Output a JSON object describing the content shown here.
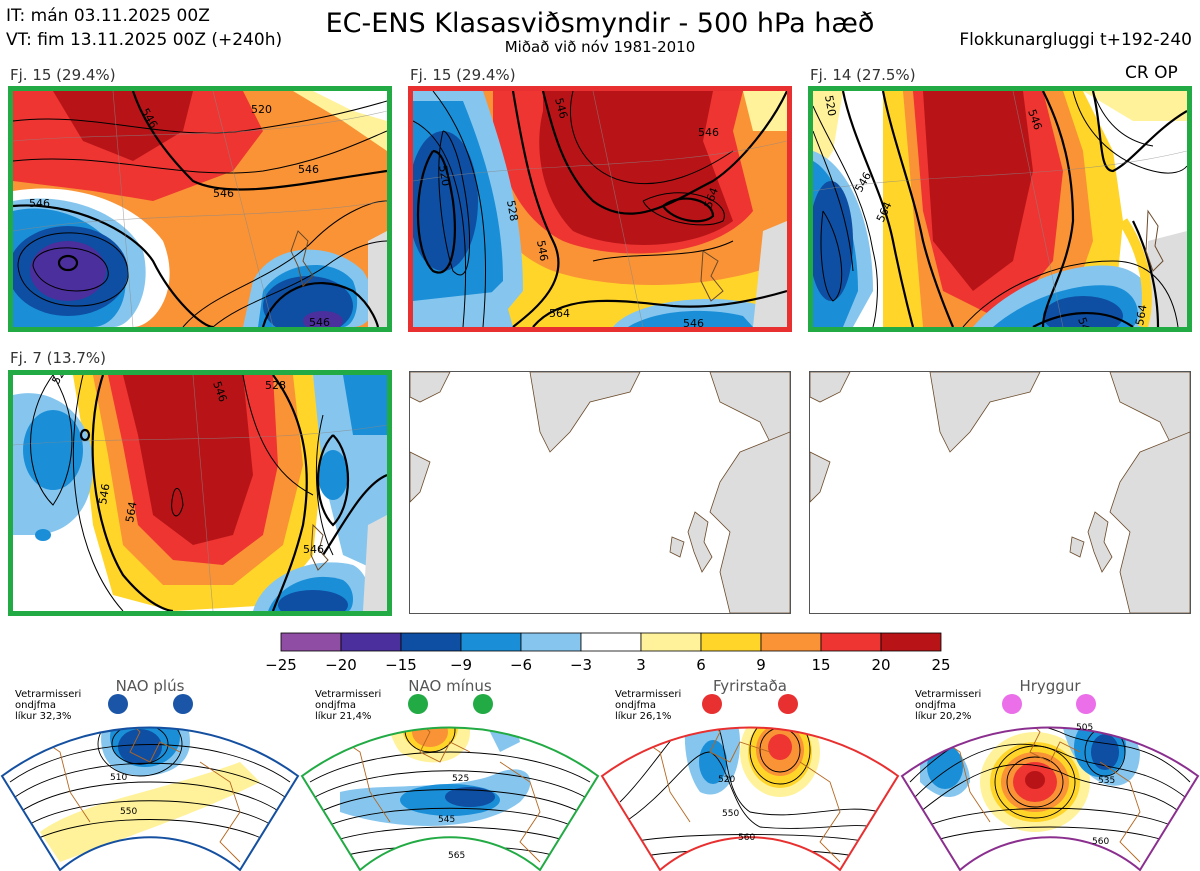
{
  "header": {
    "it": "IT: mán 03.11.2025 00Z",
    "vt": "VT: fim 13.11.2025 00Z  (+240h)",
    "title": "EC-ENS Klasasviðsmyndir - 500 hPa hæð",
    "subtitle": "Miðað við nóv 1981-2010",
    "window": "Flokkunargluggi t+192-240"
  },
  "panels": [
    {
      "label": "Fj. 15 (29.4%)",
      "frame": "#22aa44",
      "extra": "",
      "contours": [
        "520",
        "546",
        "546",
        "546",
        "546",
        "546"
      ]
    },
    {
      "label": "Fj. 15 (29.4%)",
      "frame": "#e83030",
      "extra": "",
      "contours": [
        "546",
        "546",
        "520",
        "528",
        "546",
        "564",
        "564",
        "546"
      ]
    },
    {
      "label": "Fj. 14 (27.5%)",
      "frame": "#22aa44",
      "extra": "CR OP",
      "contours": [
        "520",
        "546",
        "546",
        "564",
        "546",
        "564"
      ]
    },
    {
      "label": "Fj. 7 (13.7%)",
      "frame": "#22aa44",
      "extra": "",
      "contours": [
        "520",
        "546",
        "528",
        "546",
        "564",
        "546"
      ]
    },
    {
      "label": "",
      "frame": "",
      "extra": "",
      "contours": []
    },
    {
      "label": "",
      "frame": "",
      "extra": "",
      "contours": []
    }
  ],
  "colorbar": {
    "colors": [
      "#8f4ea3",
      "#4b2f9c",
      "#0e4fa3",
      "#1a8fd8",
      "#86c6ee",
      "#ffffff",
      "#fff29a",
      "#ffd52a",
      "#f99336",
      "#ee3532",
      "#b81418"
    ],
    "ticks": [
      "−25",
      "−20",
      "−15",
      "−9",
      "−6",
      "−3",
      "3",
      "6",
      "9",
      "15",
      "20",
      "25"
    ]
  },
  "regimes": [
    {
      "title": "NAO plús",
      "info": [
        "Vetrarmisseri",
        "ondjfma",
        "líkur 32,3%"
      ],
      "color": "#1550a0",
      "dot": "#1a55a8",
      "contours": [
        "510",
        "550"
      ]
    },
    {
      "title": "NAO mínus",
      "info": [
        "Vetrarmisseri",
        "ondjfma",
        "líkur 21,4%"
      ],
      "color": "#22aa44",
      "dot": "#22aa44",
      "contours": [
        "525",
        "545",
        "565"
      ]
    },
    {
      "title": "Fyrirstaða",
      "info": [
        "Vetrarmisseri",
        "ondjfma",
        "líkur 26,1%"
      ],
      "color": "#e83030",
      "dot": "#e83030",
      "contours": [
        "520",
        "550",
        "560"
      ]
    },
    {
      "title": "Hryggur",
      "info": [
        "Vetrarmisseri",
        "ondjfma",
        "líkur 20,2%"
      ],
      "color": "#8b2f8f",
      "dot": "#ea6fe8",
      "contours": [
        "505",
        "535",
        "560"
      ]
    }
  ]
}
